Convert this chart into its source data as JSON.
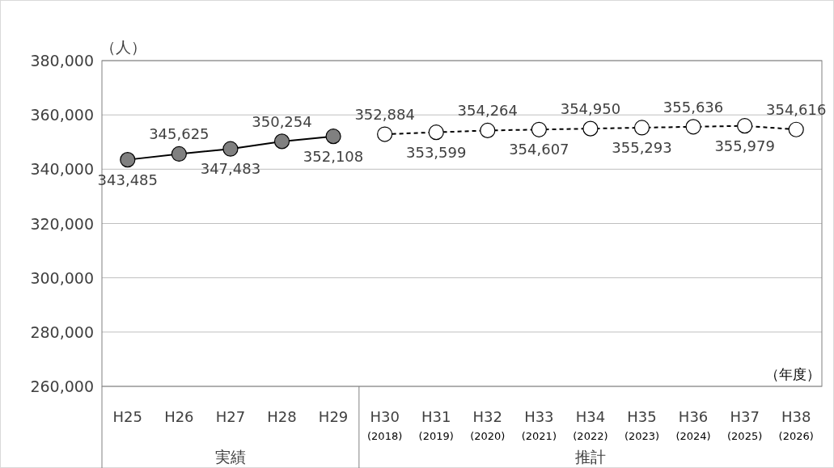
{
  "chart_data": {
    "type": "line",
    "ylabel": "（人）",
    "xlabel": "（年度）",
    "categories": [
      "H25",
      "H26",
      "H27",
      "H28",
      "H29",
      "H30 (2018)",
      "H31 (2019)",
      "H32 (2020)",
      "H33 (2021)",
      "H34 (2022)",
      "H35 (2023)",
      "H36 (2024)",
      "H37 (2025)",
      "H38 (2026)"
    ],
    "series": [
      {
        "color": "#808080",
        "line_style": "solid",
        "values": [
          343485,
          345625,
          347483,
          350254,
          352108,
          null,
          null,
          null,
          null,
          null,
          null,
          null,
          null,
          null
        ],
        "value_labels": [
          "343,485",
          "345,625",
          "347,483",
          "350,254",
          "352,108",
          null,
          null,
          null,
          null,
          null,
          null,
          null,
          null,
          null
        ]
      },
      {
        "color": "#ffffff",
        "line_style": "dashed",
        "values": [
          null,
          null,
          null,
          null,
          null,
          352884,
          353599,
          354264,
          354607,
          354950,
          355293,
          355636,
          355979,
          354616
        ],
        "value_labels": [
          null,
          null,
          null,
          null,
          null,
          "352,884",
          "353,599",
          "354,264",
          "354,607",
          "354,950",
          "355,293",
          "355,636",
          "355,979",
          "354,616"
        ]
      }
    ],
    "annotations": [
      "実績",
      "推計"
    ],
    "ylim": [
      260000,
      380000
    ],
    "yticks": [
      {
        "value": 260000,
        "label": "260,000"
      },
      {
        "value": 280000,
        "label": "280,000"
      },
      {
        "value": 300000,
        "label": "300,000"
      },
      {
        "value": 320000,
        "label": "320,000"
      },
      {
        "value": 340000,
        "label": "340,000"
      },
      {
        "value": 360000,
        "label": "360,000"
      },
      {
        "value": 380000,
        "label": "380,000"
      }
    ],
    "grid": "y",
    "marker": "circle"
  }
}
